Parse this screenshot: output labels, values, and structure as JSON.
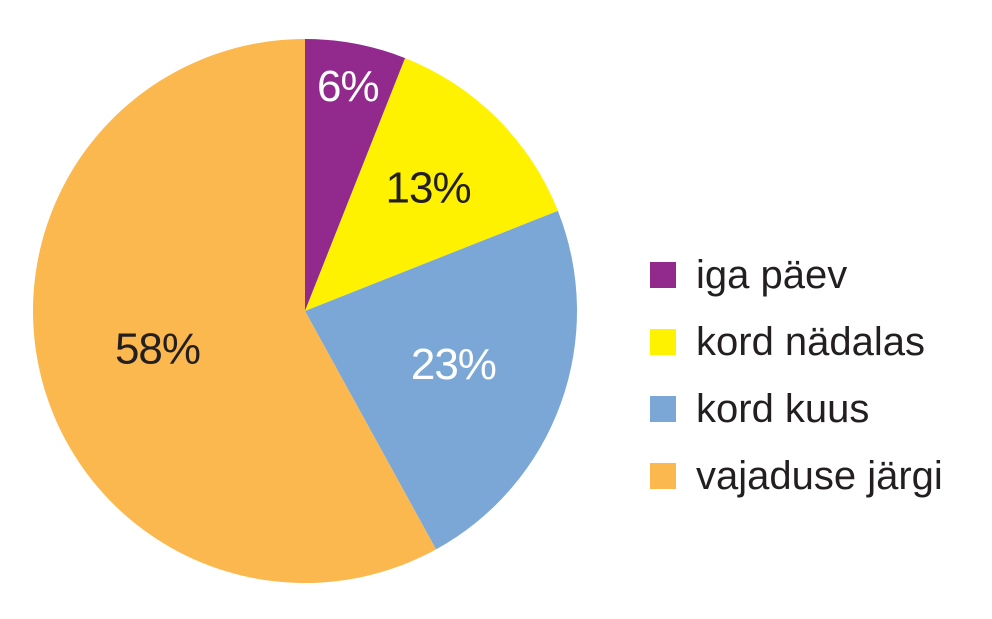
{
  "chart_data": {
    "type": "pie",
    "title": "",
    "start_angle_deg": 0,
    "direction": "clockwise",
    "slices": [
      {
        "name": "iga päev",
        "value": 6,
        "label": "6%",
        "color": "#922a8e",
        "label_color": "#ffffff"
      },
      {
        "name": "kord nädalas",
        "value": 13,
        "label": "13%",
        "color": "#fff200",
        "label_color": "#231f20"
      },
      {
        "name": "kord kuus",
        "value": 23,
        "label": "23%",
        "color": "#7ba7d7",
        "label_color": "#ffffff"
      },
      {
        "name": "vajaduse järgi",
        "value": 58,
        "label": "58%",
        "color": "#fbb84e",
        "label_color": "#231f20"
      }
    ],
    "legend_position": "right"
  }
}
